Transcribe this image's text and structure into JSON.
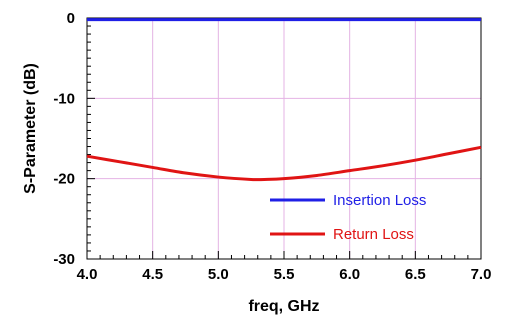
{
  "chart_data": {
    "type": "line",
    "title": "",
    "xlabel": "freq, GHz",
    "ylabel": "S-Parameter (dB)",
    "xlim": [
      4.0,
      7.0
    ],
    "ylim": [
      -30,
      0
    ],
    "grid": true,
    "legend_placement": "bottom-right",
    "x_ticks": [
      "4.0",
      "4.5",
      "5.0",
      "5.5",
      "6.0",
      "6.5",
      "7.0"
    ],
    "y_ticks": [
      "0",
      "-10",
      "-20",
      "-30"
    ],
    "series": [
      {
        "name": "Insertion Loss",
        "color": "#1f1fe6",
        "x": [
          4.0,
          4.5,
          5.0,
          5.5,
          6.0,
          6.5,
          7.0
        ],
        "y": [
          -0.2,
          -0.2,
          -0.2,
          -0.2,
          -0.2,
          -0.2,
          -0.2
        ]
      },
      {
        "name": "Return Loss",
        "color": "#e01414",
        "x": [
          4.0,
          4.25,
          4.5,
          4.75,
          5.0,
          5.25,
          5.35,
          5.5,
          5.75,
          6.0,
          6.25,
          6.5,
          6.75,
          7.0
        ],
        "y": [
          -17.2,
          -17.9,
          -18.6,
          -19.3,
          -19.8,
          -20.1,
          -20.1,
          -20.0,
          -19.6,
          -19.0,
          -18.4,
          -17.7,
          -16.9,
          -16.1
        ]
      }
    ]
  }
}
